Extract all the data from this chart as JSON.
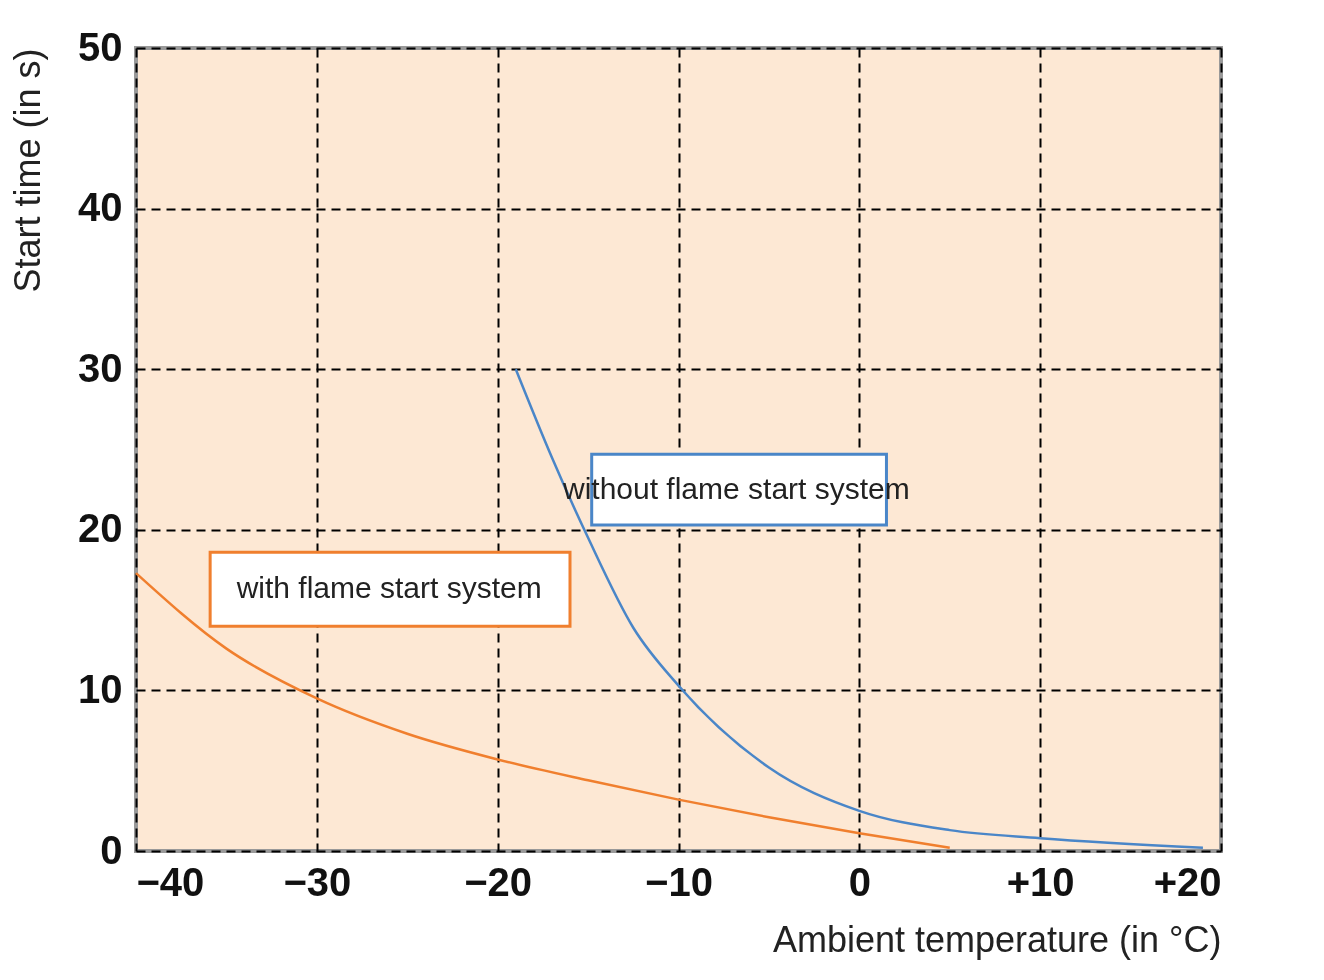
{
  "chart_data": {
    "type": "line",
    "xlabel": "Ambient temperature (in °C)",
    "ylabel": "Start time (in s)",
    "xlim": [
      -40,
      20
    ],
    "ylim": [
      0,
      50
    ],
    "xticks": [
      -40,
      -30,
      -20,
      -10,
      0,
      {
        "value": 10,
        "label": "+10"
      },
      {
        "value": 20,
        "label": "+20"
      }
    ],
    "yticks": [
      0,
      10,
      20,
      30,
      40,
      50
    ],
    "grid": true,
    "line_style": "solid",
    "series": [
      {
        "name": "with flame start system",
        "color": "#f07f2e",
        "x": [
          -40,
          -35,
          -30,
          -25,
          -20,
          -15,
          -10,
          -5,
          0,
          5
        ],
        "values": [
          17.3,
          12.6,
          9.5,
          7.3,
          5.7,
          4.4,
          3.2,
          2.1,
          1.1,
          0.2
        ]
      },
      {
        "name": "without flame start system",
        "color": "#4a86c8",
        "x": [
          -19,
          -17,
          -15,
          -12.5,
          -10,
          -5,
          0,
          5,
          10,
          19
        ],
        "values": [
          30,
          24.5,
          19.5,
          13.9,
          10.3,
          5.2,
          2.5,
          1.3,
          0.8,
          0.2
        ]
      }
    ]
  }
}
